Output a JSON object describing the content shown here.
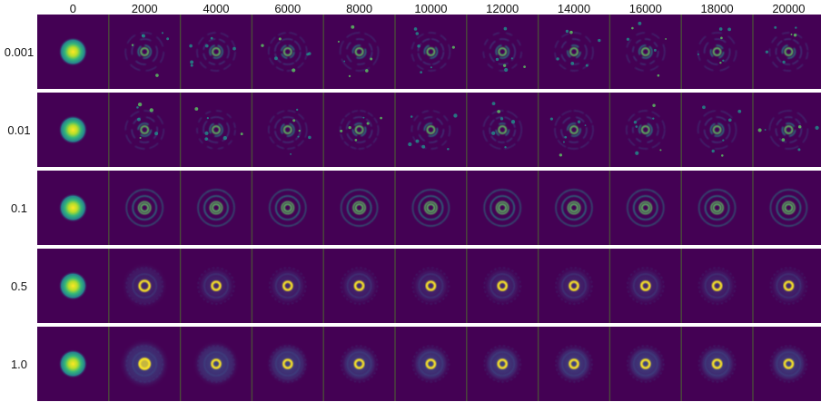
{
  "columns": [
    "0",
    "2000",
    "4000",
    "6000",
    "8000",
    "10000",
    "12000",
    "14000",
    "16000",
    "18000",
    "20000"
  ],
  "rows": [
    "0.001",
    "0.01",
    "0.1",
    "0.5",
    "1.0"
  ],
  "colors": {
    "background": "#440154",
    "dim": "#3b528b",
    "mid": "#21918c",
    "bright": "#5ec962",
    "peak": "#fde725",
    "divider": "#4a4a3a",
    "page": "#ffffff"
  }
}
